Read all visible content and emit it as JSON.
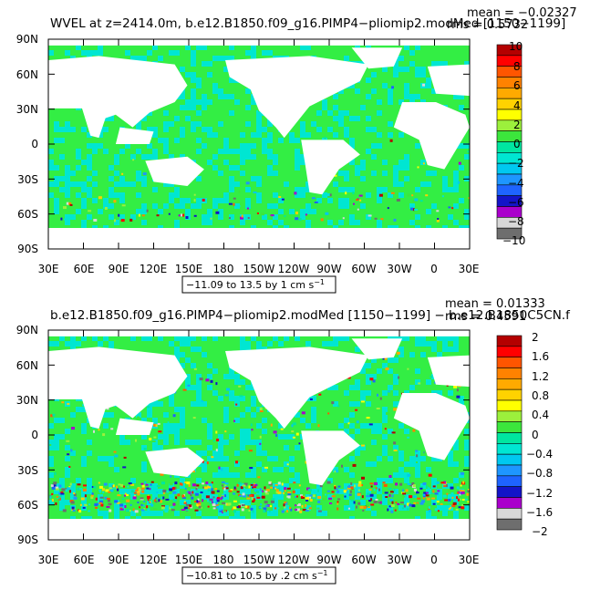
{
  "colors": {
    "ocean_base": "#33ee44",
    "ocean_cool": "#00e6d2",
    "palette": [
      "#6e6e6e",
      "#d8d8d8",
      "#aa00cc",
      "#1414c8",
      "#1e64ff",
      "#1e96ff",
      "#00c8f0",
      "#00e6d2",
      "#00e6a0",
      "#3ce63c",
      "#9cf03c",
      "#ffff00",
      "#ffd200",
      "#ffaa00",
      "#ff8200",
      "#ff5500",
      "#ff0000",
      "#b40000"
    ]
  },
  "chart_data": [
    {
      "type": "heatmap",
      "title": "WVEL at z=2414.0m, b.e12.B1850.f09_g16.PIMP4−pliomip2.modMed [1150−1199]",
      "stats": {
        "mean": "mean = −0.02327",
        "rms": "rms = 0.5732"
      },
      "x_tick_labels": [
        "30E",
        "60E",
        "90E",
        "120E",
        "150E",
        "180",
        "150W",
        "120W",
        "90W",
        "60W",
        "30W",
        "0",
        "30E"
      ],
      "y_tick_labels": [
        "90N",
        "60N",
        "30N",
        "0",
        "30S",
        "60S",
        "90S"
      ],
      "xlim": [
        30,
        390
      ],
      "ylim": [
        -90,
        90
      ],
      "colorbar_labels": [
        "10",
        "8",
        "6",
        "4",
        "2",
        "0",
        "−2",
        "−4",
        "−6",
        "−8",
        "−10"
      ],
      "range_label": "−11.09 to 13.5 by 1 cm s",
      "range_unit_exp": "−1",
      "field_variability": "low"
    },
    {
      "type": "heatmap",
      "title": "b.e12.B1850.f09_g16.PIMP4−pliomip2.modMed [1150−1199] − b.e12.B1850C5CN.f",
      "stats": {
        "mean": "mean = 0.01333",
        "rms": "rms = 0.4591"
      },
      "x_tick_labels": [
        "30E",
        "60E",
        "90E",
        "120E",
        "150E",
        "180",
        "150W",
        "120W",
        "90W",
        "60W",
        "30W",
        "0",
        "30E"
      ],
      "y_tick_labels": [
        "90N",
        "60N",
        "30N",
        "0",
        "30S",
        "60S",
        "90S"
      ],
      "xlim": [
        30,
        390
      ],
      "ylim": [
        -90,
        90
      ],
      "colorbar_labels": [
        "2",
        "1.6",
        "1.2",
        "0.8",
        "0.4",
        "0",
        "−0.4",
        "−0.8",
        "−1.2",
        "−1.6",
        "−2"
      ],
      "range_label": "−10.81 to 10.5 by .2 cm s",
      "range_unit_exp": "−1",
      "field_variability": "high"
    }
  ]
}
